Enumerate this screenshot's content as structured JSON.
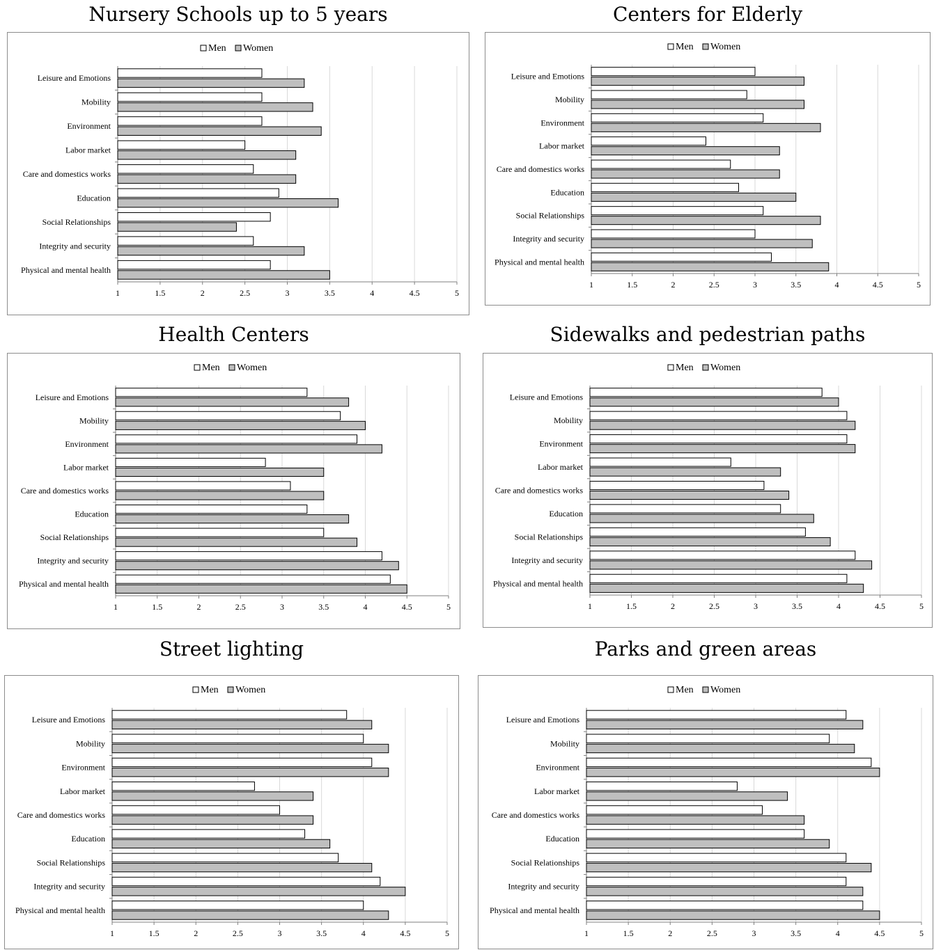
{
  "legend": {
    "men": "Men",
    "women": "Women"
  },
  "colors": {
    "men": "#ffffff",
    "women": "#bfbfbf",
    "edge": "#000000",
    "grid": "#d9d9d9"
  },
  "chart_data": [
    {
      "type": "bar",
      "orientation": "horizontal",
      "title": "Nursery Schools up to 5 years",
      "categories": [
        "Leisure and Emotions",
        "Mobility",
        "Environment",
        "Labor market",
        "Care and domestics works",
        "Education",
        "Social Relationships",
        "Integrity and security",
        "Physical and mental health"
      ],
      "series": [
        {
          "name": "Men",
          "values": [
            2.7,
            2.7,
            2.7,
            2.5,
            2.6,
            2.9,
            2.8,
            2.6,
            2.8
          ]
        },
        {
          "name": "Women",
          "values": [
            3.2,
            3.3,
            3.4,
            3.1,
            3.1,
            3.6,
            2.4,
            3.2,
            3.5
          ]
        }
      ],
      "xlim": [
        1,
        5
      ],
      "ticks": [
        "1",
        "1.5",
        "2",
        "2.5",
        "3",
        "3.5",
        "4",
        "4.5",
        "5"
      ],
      "grid": true,
      "legend": "top-center"
    },
    {
      "type": "bar",
      "orientation": "horizontal",
      "title": "Centers for Elderly",
      "categories": [
        "Leisure and Emotions",
        "Mobility",
        "Environment",
        "Labor market",
        "Care and domestics works",
        "Education",
        "Social Relationships",
        "Integrity and security",
        "Physical and mental health"
      ],
      "series": [
        {
          "name": "Men",
          "values": [
            3.0,
            2.9,
            3.1,
            2.4,
            2.7,
            2.8,
            3.1,
            3.0,
            3.2
          ]
        },
        {
          "name": "Women",
          "values": [
            3.6,
            3.6,
            3.8,
            3.3,
            3.3,
            3.5,
            3.8,
            3.7,
            3.9
          ]
        }
      ],
      "xlim": [
        1,
        5
      ],
      "ticks": [
        "1",
        "1.5",
        "2",
        "2.5",
        "3",
        "3.5",
        "4",
        "4.5",
        "5"
      ],
      "grid": true,
      "legend": "top-center"
    },
    {
      "type": "bar",
      "orientation": "horizontal",
      "title": "Health Centers",
      "categories": [
        "Leisure and Emotions",
        "Mobility",
        "Environment",
        "Labor market",
        "Care and domestics works",
        "Education",
        "Social Relationships",
        "Integrity and security",
        "Physical and mental health"
      ],
      "series": [
        {
          "name": "Men",
          "values": [
            3.3,
            3.7,
            3.9,
            2.8,
            3.1,
            3.3,
            3.5,
            4.2,
            4.3
          ]
        },
        {
          "name": "Women",
          "values": [
            3.8,
            4.0,
            4.2,
            3.5,
            3.5,
            3.8,
            3.9,
            4.4,
            4.5
          ]
        }
      ],
      "xlim": [
        1,
        5
      ],
      "ticks": [
        "1",
        "1.5",
        "2",
        "2.5",
        "3",
        "3.5",
        "4",
        "4.5",
        "5"
      ],
      "grid": true,
      "legend": "top-center"
    },
    {
      "type": "bar",
      "orientation": "horizontal",
      "title": "Sidewalks and pedestrian paths",
      "categories": [
        "Leisure and Emotions",
        "Mobility",
        "Environment",
        "Labor market",
        "Care and domestics works",
        "Education",
        "Social Relationships",
        "Integrity and security",
        "Physical and mental health"
      ],
      "series": [
        {
          "name": "Men",
          "values": [
            3.8,
            4.1,
            4.1,
            2.7,
            3.1,
            3.3,
            3.6,
            4.2,
            4.1
          ]
        },
        {
          "name": "Women",
          "values": [
            4.0,
            4.2,
            4.2,
            3.3,
            3.4,
            3.7,
            3.9,
            4.4,
            4.3
          ]
        }
      ],
      "xlim": [
        1,
        5
      ],
      "ticks": [
        "1",
        "1.5",
        "2",
        "2.5",
        "3",
        "3.5",
        "4",
        "4.5",
        "5"
      ],
      "grid": true,
      "legend": "top-center"
    },
    {
      "type": "bar",
      "orientation": "horizontal",
      "title": "Street lighting",
      "categories": [
        "Leisure and Emotions",
        "Mobility",
        "Environment",
        "Labor market",
        "Care and domestics works",
        "Education",
        "Social Relationships",
        "Integrity and security",
        "Physical and mental health"
      ],
      "series": [
        {
          "name": "Men",
          "values": [
            3.8,
            4.0,
            4.1,
            2.7,
            3.0,
            3.3,
            3.7,
            4.2,
            4.0
          ]
        },
        {
          "name": "Women",
          "values": [
            4.1,
            4.3,
            4.3,
            3.4,
            3.4,
            3.6,
            4.1,
            4.5,
            4.3
          ]
        }
      ],
      "xlim": [
        1,
        5
      ],
      "ticks": [
        "1",
        "1.5",
        "2",
        "2.5",
        "3",
        "3.5",
        "4",
        "4.5",
        "5"
      ],
      "grid": true,
      "legend": "top-center"
    },
    {
      "type": "bar",
      "orientation": "horizontal",
      "title": "Parks and green areas",
      "categories": [
        "Leisure and Emotions",
        "Mobility",
        "Environment",
        "Labor market",
        "Care and domestics works",
        "Education",
        "Social Relationships",
        "Integrity and security",
        "Physical and mental health"
      ],
      "series": [
        {
          "name": "Men",
          "values": [
            4.1,
            3.9,
            4.4,
            2.8,
            3.1,
            3.6,
            4.1,
            4.1,
            4.3
          ]
        },
        {
          "name": "Women",
          "values": [
            4.3,
            4.2,
            4.5,
            3.4,
            3.6,
            3.9,
            4.4,
            4.3,
            4.5
          ]
        }
      ],
      "xlim": [
        1,
        5
      ],
      "ticks": [
        "1",
        "1.5",
        "2",
        "2.5",
        "3",
        "3.5",
        "4",
        "4.5",
        "5"
      ],
      "grid": true,
      "legend": "top-center"
    }
  ]
}
